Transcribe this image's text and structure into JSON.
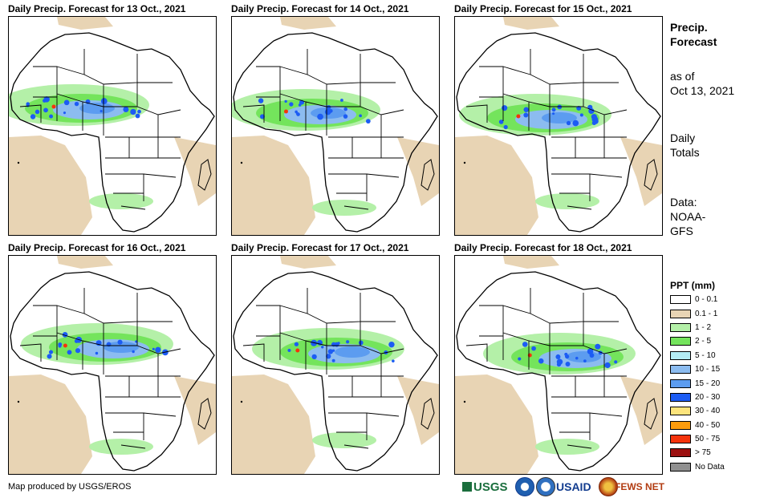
{
  "panels": [
    {
      "title": "Daily Precip. Forecast for 13 Oct., 2021",
      "day": "13 Oct., 2021"
    },
    {
      "title": "Daily Precip. Forecast for 14 Oct., 2021",
      "day": "14 Oct., 2021"
    },
    {
      "title": "Daily Precip. Forecast for 15 Oct., 2021",
      "day": "15 Oct., 2021"
    },
    {
      "title": "Daily Precip. Forecast for 16 Oct., 2021",
      "day": "16 Oct., 2021"
    },
    {
      "title": "Daily Precip. Forecast for 17 Oct., 2021",
      "day": "17 Oct., 2021"
    },
    {
      "title": "Daily Precip. Forecast for 18 Oct., 2021",
      "day": "18 Oct., 2021"
    }
  ],
  "sidebar": {
    "heading_line1": "Precip.",
    "heading_line2": "Forecast",
    "asof_line1": "as of",
    "asof_line2": "Oct 13, 2021",
    "totals_line1": "Daily",
    "totals_line2": "Totals",
    "data_line1": "Data:",
    "data_line2": "NOAA-",
    "data_line3": "GFS"
  },
  "legend": {
    "title": "PPT (mm)",
    "items": [
      {
        "label": "0 - 0.1",
        "color": "#ffffff"
      },
      {
        "label": "0.1 - 1",
        "color": "#e8d4b4"
      },
      {
        "label": "1 - 2",
        "color": "#b4f0a8"
      },
      {
        "label": "2 - 5",
        "color": "#74e45c"
      },
      {
        "label": "5 - 10",
        "color": "#b4ecf4"
      },
      {
        "label": "10 - 15",
        "color": "#8cbcf0"
      },
      {
        "label": "15 - 20",
        "color": "#5c9cf0"
      },
      {
        "label": "20 - 30",
        "color": "#1c5cf4"
      },
      {
        "label": "30 - 40",
        "color": "#fce47c"
      },
      {
        "label": "40 - 50",
        "color": "#fc9c0c"
      },
      {
        "label": "50 - 75",
        "color": "#f4340c"
      },
      {
        "label": "> 75",
        "color": "#9c1010"
      },
      {
        "label": "No Data",
        "color": "#909090"
      }
    ]
  },
  "footer": {
    "credit": "Map produced by USGS/EROS",
    "logo_usgs": "USGS",
    "logo_usaid": "USAID",
    "logo_fews": "FEWS NET"
  }
}
